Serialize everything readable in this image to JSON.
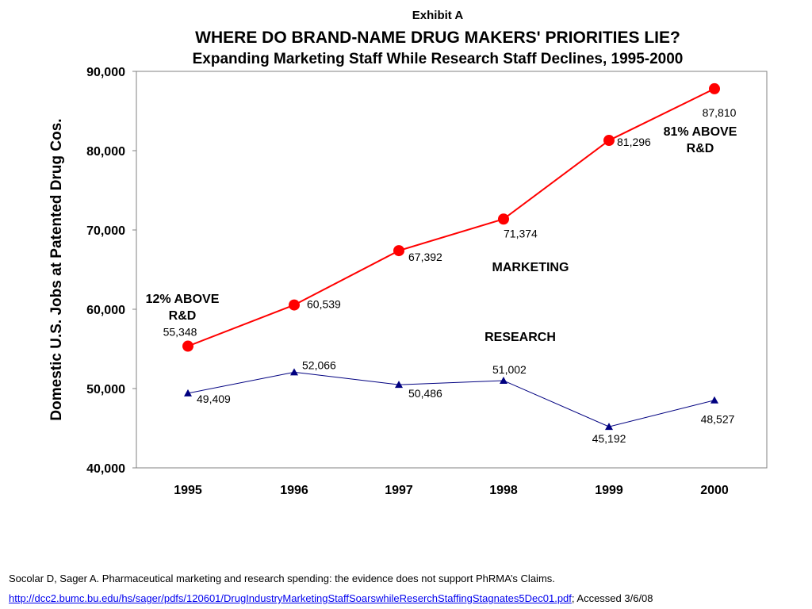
{
  "header": {
    "exhibit": "Exhibit A",
    "title": "WHERE DO BRAND-NAME DRUG MAKERS' PRIORITIES LIE?",
    "subtitle": "Expanding Marketing Staff While Research Staff Declines, 1995-2000"
  },
  "chart_data": {
    "type": "line",
    "x": [
      "1995",
      "1996",
      "1997",
      "1998",
      "1999",
      "2000"
    ],
    "ylabel": "Domestic U.S. Jobs at Patented Drug Cos.",
    "xlabel": "",
    "ylim": [
      40000,
      90000
    ],
    "yticks": [
      "40,000",
      "50,000",
      "60,000",
      "70,000",
      "80,000",
      "90,000"
    ],
    "ytick_values": [
      40000,
      50000,
      60000,
      70000,
      80000,
      90000
    ],
    "grid": false,
    "series": [
      {
        "name": "MARKETING",
        "color": "#ff0000",
        "marker": "circle",
        "values": [
          55348,
          60539,
          67392,
          71374,
          81296,
          87810
        ],
        "labels": [
          "55,348",
          "60,539",
          "67,392",
          "71,374",
          "81,296",
          "87,810"
        ]
      },
      {
        "name": "RESEARCH",
        "color": "#000080",
        "marker": "triangle",
        "values": [
          49409,
          52066,
          50486,
          51002,
          45192,
          48527
        ],
        "labels": [
          "49,409",
          "52,066",
          "50,486",
          "51,002",
          "45,192",
          "48,527"
        ]
      }
    ],
    "annotations": {
      "start_line1": "12% ABOVE",
      "start_line2": "R&D",
      "end_line1": "81% ABOVE",
      "end_line2": "R&D"
    }
  },
  "footer": {
    "citation": "Socolar D, Sager A.  Pharmaceutical marketing and research spending:  the evidence does not support PhRMA’s Claims.",
    "url": "http://dcc2.bumc.bu.edu/hs/sager/pdfs/120601/DrugIndustryMarketingStaffSoarswhileReserchStaffingStagnates5Dec01.pdf",
    "accessed": ";  Accessed 3/6/08"
  }
}
